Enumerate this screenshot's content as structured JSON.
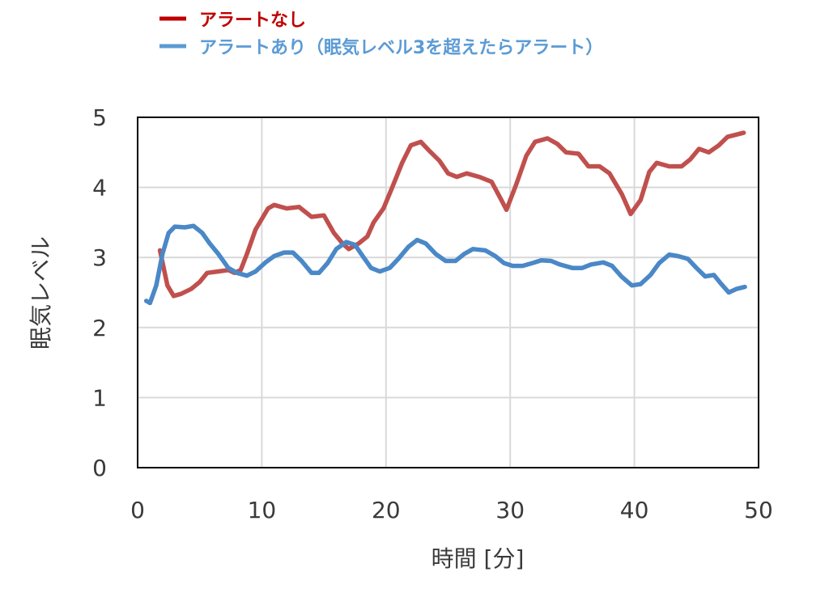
{
  "chart_data": {
    "type": "line",
    "xlabel": "時間 [分]",
    "ylabel": "眠気レベル",
    "xlim": [
      0,
      50
    ],
    "ylim": [
      0,
      5
    ],
    "xticks": [
      "0",
      "10",
      "20",
      "30",
      "40",
      "50"
    ],
    "yticks": [
      "0",
      "1",
      "2",
      "3",
      "4",
      "5"
    ],
    "grid": true,
    "legend_position": "top-left",
    "series": [
      {
        "name": "アラートなし",
        "color": "#c0504d",
        "legend_color": "#c00000",
        "points": [
          [
            1.8,
            3.1
          ],
          [
            2.4,
            2.6
          ],
          [
            2.9,
            2.45
          ],
          [
            3.5,
            2.48
          ],
          [
            4.3,
            2.55
          ],
          [
            5.0,
            2.65
          ],
          [
            5.6,
            2.78
          ],
          [
            6.5,
            2.8
          ],
          [
            7.3,
            2.82
          ],
          [
            7.8,
            2.78
          ],
          [
            8.3,
            2.82
          ],
          [
            8.8,
            3.05
          ],
          [
            9.5,
            3.4
          ],
          [
            10.5,
            3.7
          ],
          [
            11.0,
            3.75
          ],
          [
            12.0,
            3.7
          ],
          [
            13.0,
            3.72
          ],
          [
            14.0,
            3.58
          ],
          [
            15.0,
            3.6
          ],
          [
            15.8,
            3.35
          ],
          [
            16.5,
            3.2
          ],
          [
            17.0,
            3.12
          ],
          [
            17.8,
            3.2
          ],
          [
            18.5,
            3.3
          ],
          [
            19.0,
            3.5
          ],
          [
            19.8,
            3.7
          ],
          [
            20.5,
            4.0
          ],
          [
            21.3,
            4.35
          ],
          [
            22.0,
            4.6
          ],
          [
            22.8,
            4.65
          ],
          [
            23.5,
            4.52
          ],
          [
            24.3,
            4.38
          ],
          [
            25.0,
            4.2
          ],
          [
            25.7,
            4.15
          ],
          [
            26.5,
            4.2
          ],
          [
            27.5,
            4.15
          ],
          [
            28.5,
            4.08
          ],
          [
            29.2,
            3.85
          ],
          [
            29.7,
            3.68
          ],
          [
            30.5,
            4.05
          ],
          [
            31.3,
            4.45
          ],
          [
            32.0,
            4.65
          ],
          [
            33.0,
            4.7
          ],
          [
            33.8,
            4.62
          ],
          [
            34.5,
            4.5
          ],
          [
            35.5,
            4.48
          ],
          [
            36.3,
            4.3
          ],
          [
            37.2,
            4.3
          ],
          [
            38.0,
            4.2
          ],
          [
            39.0,
            3.9
          ],
          [
            39.7,
            3.62
          ],
          [
            40.5,
            3.82
          ],
          [
            41.2,
            4.22
          ],
          [
            41.8,
            4.35
          ],
          [
            42.8,
            4.3
          ],
          [
            43.8,
            4.3
          ],
          [
            44.5,
            4.4
          ],
          [
            45.2,
            4.55
          ],
          [
            46.0,
            4.5
          ],
          [
            46.8,
            4.6
          ],
          [
            47.5,
            4.72
          ],
          [
            48.8,
            4.78
          ]
        ]
      },
      {
        "name": "アラートあり（眠気レベル3を超えたらアラート）",
        "color": "#4a88c7",
        "legend_color": "#5b9bd5",
        "points": [
          [
            0.7,
            2.38
          ],
          [
            1.0,
            2.35
          ],
          [
            1.5,
            2.6
          ],
          [
            2.0,
            3.05
          ],
          [
            2.5,
            3.35
          ],
          [
            3.0,
            3.44
          ],
          [
            3.8,
            3.43
          ],
          [
            4.5,
            3.45
          ],
          [
            5.2,
            3.35
          ],
          [
            5.8,
            3.2
          ],
          [
            6.5,
            3.05
          ],
          [
            7.3,
            2.85
          ],
          [
            8.0,
            2.78
          ],
          [
            8.8,
            2.74
          ],
          [
            9.5,
            2.8
          ],
          [
            10.3,
            2.93
          ],
          [
            11.0,
            3.02
          ],
          [
            11.8,
            3.07
          ],
          [
            12.5,
            3.07
          ],
          [
            13.2,
            2.95
          ],
          [
            14.0,
            2.78
          ],
          [
            14.6,
            2.78
          ],
          [
            15.3,
            2.92
          ],
          [
            16.0,
            3.12
          ],
          [
            16.8,
            3.22
          ],
          [
            17.5,
            3.18
          ],
          [
            18.2,
            3.0
          ],
          [
            18.8,
            2.85
          ],
          [
            19.5,
            2.8
          ],
          [
            20.3,
            2.85
          ],
          [
            21.0,
            2.98
          ],
          [
            21.8,
            3.15
          ],
          [
            22.5,
            3.25
          ],
          [
            23.2,
            3.2
          ],
          [
            24.0,
            3.05
          ],
          [
            24.8,
            2.95
          ],
          [
            25.6,
            2.95
          ],
          [
            26.3,
            3.05
          ],
          [
            27.0,
            3.12
          ],
          [
            28.0,
            3.1
          ],
          [
            28.8,
            3.02
          ],
          [
            29.5,
            2.92
          ],
          [
            30.2,
            2.88
          ],
          [
            31.0,
            2.88
          ],
          [
            31.8,
            2.92
          ],
          [
            32.5,
            2.96
          ],
          [
            33.3,
            2.95
          ],
          [
            34.0,
            2.9
          ],
          [
            35.0,
            2.85
          ],
          [
            35.8,
            2.85
          ],
          [
            36.5,
            2.9
          ],
          [
            37.5,
            2.93
          ],
          [
            38.2,
            2.88
          ],
          [
            39.0,
            2.72
          ],
          [
            39.8,
            2.6
          ],
          [
            40.5,
            2.62
          ],
          [
            41.3,
            2.75
          ],
          [
            42.0,
            2.92
          ],
          [
            42.8,
            3.04
          ],
          [
            43.5,
            3.02
          ],
          [
            44.3,
            2.98
          ],
          [
            45.0,
            2.85
          ],
          [
            45.7,
            2.73
          ],
          [
            46.4,
            2.75
          ],
          [
            47.0,
            2.62
          ],
          [
            47.6,
            2.5
          ],
          [
            48.2,
            2.55
          ],
          [
            48.9,
            2.58
          ]
        ]
      }
    ]
  }
}
